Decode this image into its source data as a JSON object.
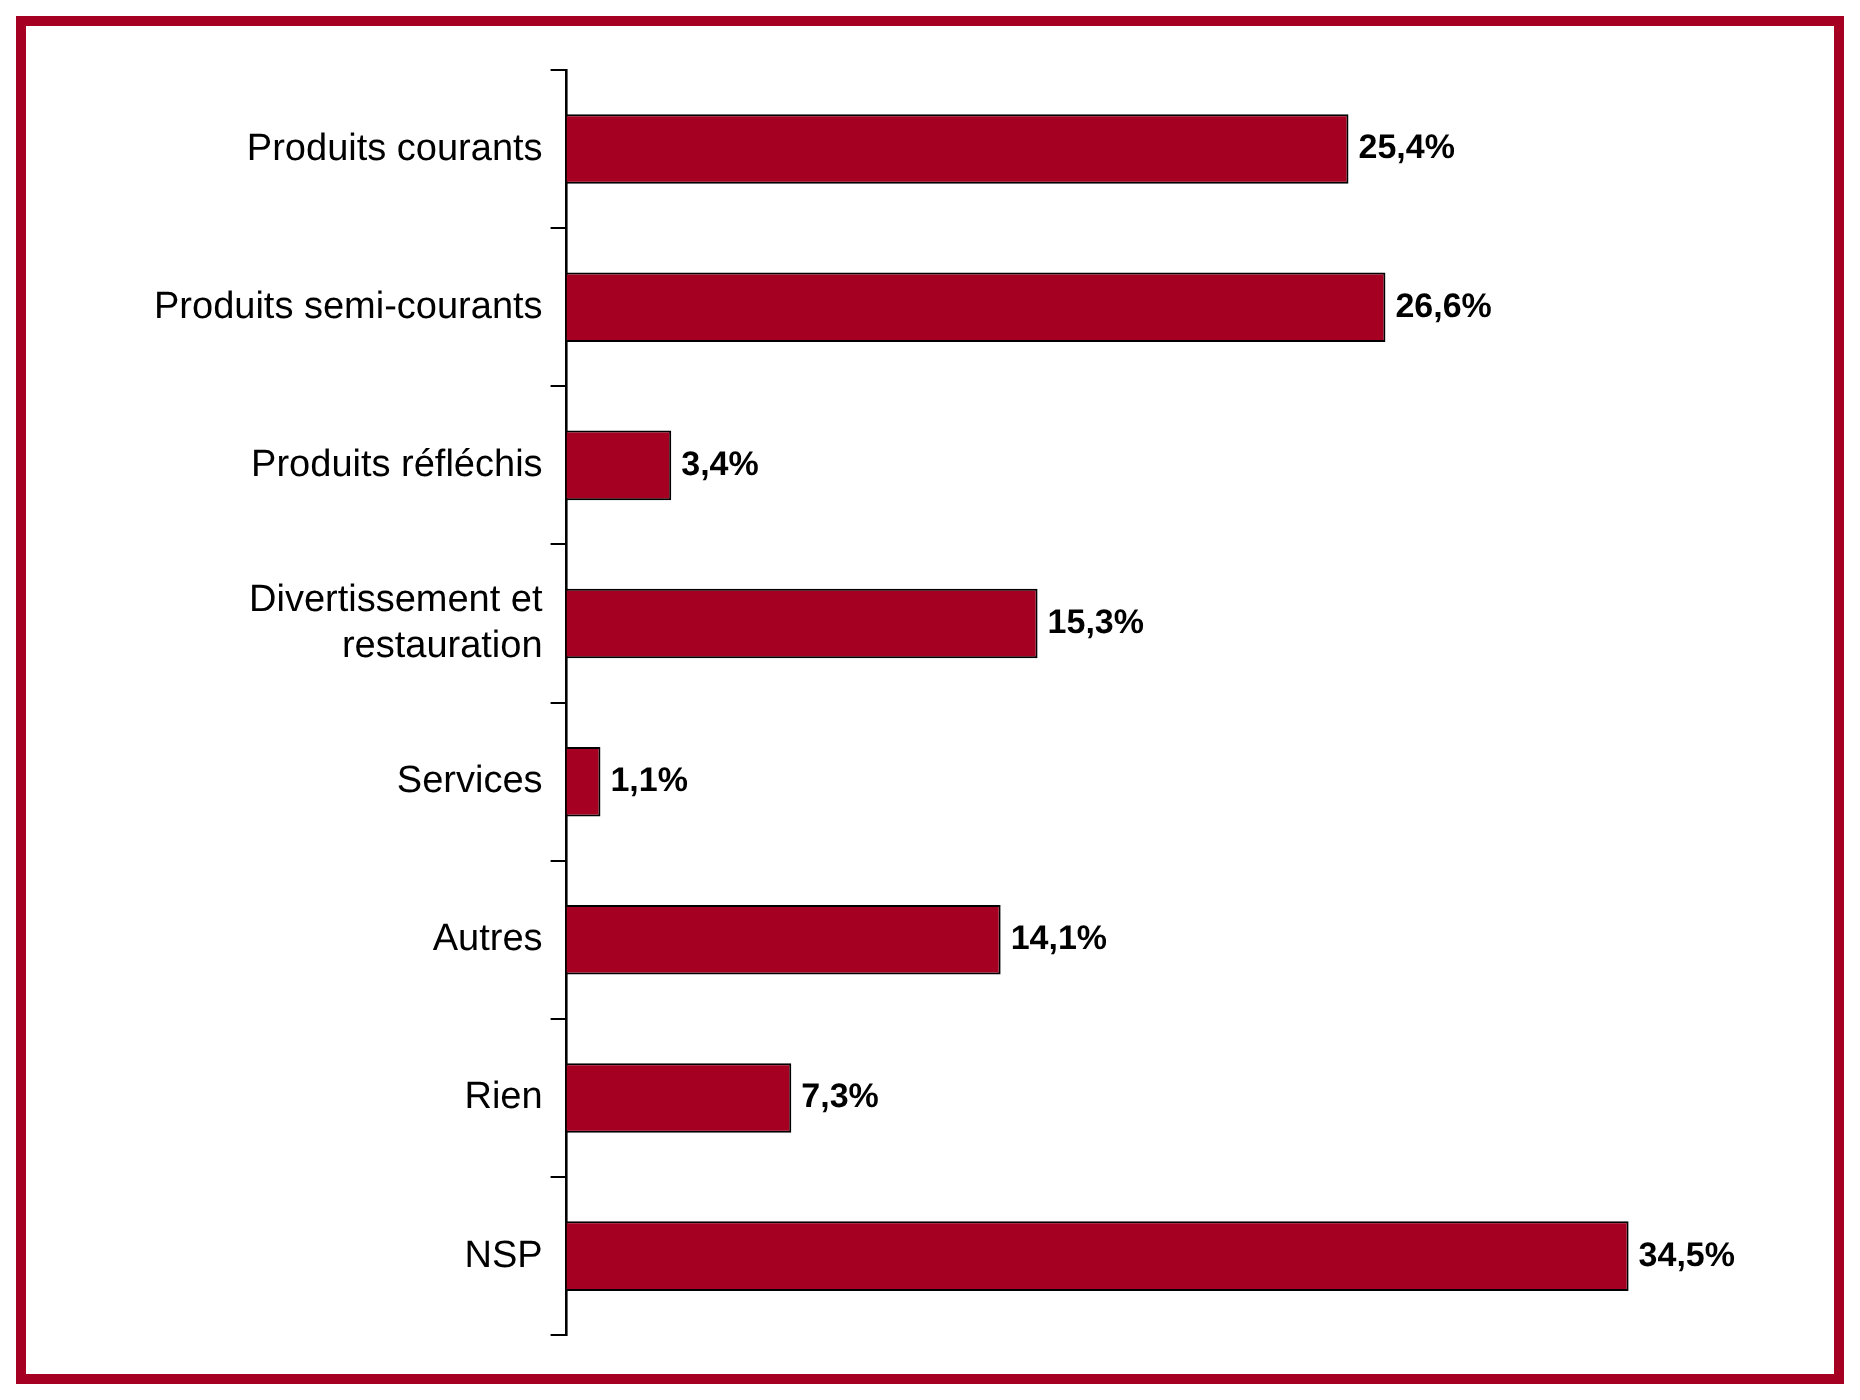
{
  "chart_data": {
    "type": "bar",
    "orientation": "horizontal",
    "categories": [
      "Produits courants",
      "Produits semi-courants",
      "Produits réfléchis",
      "Divertissement et\nrestauration",
      "Services",
      "Autres",
      "Rien",
      "NSP"
    ],
    "values": [
      25.4,
      26.6,
      3.4,
      15.3,
      1.1,
      14.1,
      7.3,
      34.5
    ],
    "value_labels": [
      "25,4%",
      "26,6%",
      "3,4%",
      "15,3%",
      "1,1%",
      "14,1%",
      "7,3%",
      "34,5%"
    ],
    "color": "#a50021",
    "tick_labels": "y",
    "grid": false,
    "legend": false
  }
}
